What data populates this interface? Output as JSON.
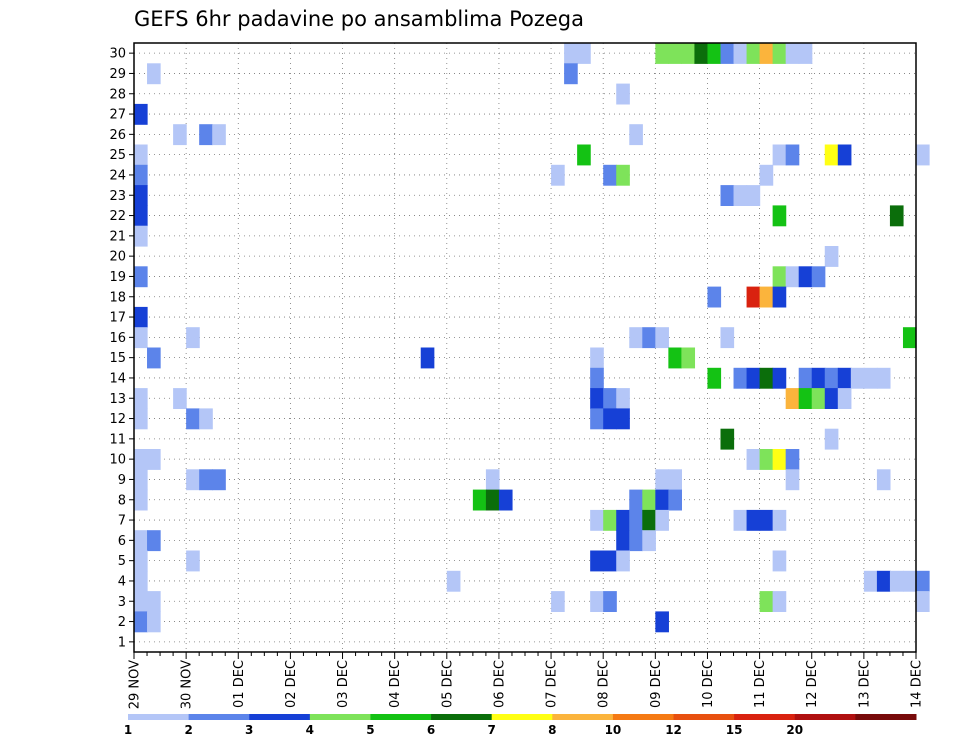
{
  "chart_data": {
    "type": "heatmap",
    "title": "GEFS 6hr padavine po ansamblima Pozega",
    "xlabel": "",
    "ylabel": "",
    "x_tick_labels": [
      "29 NOV",
      "30 NOV",
      "01 DEC",
      "02 DEC",
      "03 DEC",
      "04 DEC",
      "05 DEC",
      "06 DEC",
      "07 DEC",
      "08 DEC",
      "09 DEC",
      "10 DEC",
      "11 DEC",
      "12 DEC",
      "13 DEC",
      "14 DEC"
    ],
    "y_tick_labels": [
      "1",
      "2",
      "3",
      "4",
      "5",
      "6",
      "7",
      "8",
      "9",
      "10",
      "11",
      "12",
      "13",
      "14",
      "15",
      "16",
      "17",
      "18",
      "19",
      "20",
      "21",
      "22",
      "23",
      "24",
      "25",
      "26",
      "27",
      "28",
      "29",
      "30"
    ],
    "x_range_steps": [
      0,
      60
    ],
    "step_hours": 6,
    "grid": true,
    "legend_position": "bottom",
    "levels": [
      {
        "label": "1",
        "color": "#b4c6f7"
      },
      {
        "label": "2",
        "color": "#5c84ea"
      },
      {
        "label": "3",
        "color": "#1640d6"
      },
      {
        "label": "4",
        "color": "#7ee35a"
      },
      {
        "label": "5",
        "color": "#14c214"
      },
      {
        "label": "6",
        "color": "#0b6e0b"
      },
      {
        "label": "7",
        "color": "#ffff14"
      },
      {
        "label": "8",
        "color": "#fbb43c"
      },
      {
        "label": "10",
        "color": "#f57a14"
      },
      {
        "label": "12",
        "color": "#e8500f"
      },
      {
        "label": "15",
        "color": "#d9220f"
      },
      {
        "label": "20",
        "color": "#b01010"
      },
      {
        "label": "",
        "color": "#780b0b"
      }
    ],
    "cells_note": "each cell: [ensemble member, 6h step index from 29 NOV 00Z, color level index]",
    "cells": [
      [
        30,
        33,
        0
      ],
      [
        30,
        34,
        0
      ],
      [
        30,
        40,
        3
      ],
      [
        30,
        41,
        3
      ],
      [
        30,
        42,
        3
      ],
      [
        30,
        43,
        5
      ],
      [
        30,
        44,
        4
      ],
      [
        30,
        45,
        1
      ],
      [
        30,
        46,
        0
      ],
      [
        30,
        47,
        3
      ],
      [
        30,
        48,
        7
      ],
      [
        30,
        49,
        3
      ],
      [
        30,
        50,
        0
      ],
      [
        30,
        51,
        0
      ],
      [
        29,
        1,
        0
      ],
      [
        29,
        33,
        1
      ],
      [
        28,
        37,
        0
      ],
      [
        27,
        0,
        2
      ],
      [
        26,
        3,
        0
      ],
      [
        26,
        5,
        1
      ],
      [
        26,
        6,
        0
      ],
      [
        26,
        38,
        0
      ],
      [
        25,
        0,
        0
      ],
      [
        25,
        34,
        4
      ],
      [
        25,
        49,
        0
      ],
      [
        25,
        50,
        1
      ],
      [
        25,
        53,
        6
      ],
      [
        25,
        54,
        2
      ],
      [
        25,
        60,
        0
      ],
      [
        24,
        0,
        1
      ],
      [
        24,
        32,
        0
      ],
      [
        24,
        36,
        1
      ],
      [
        24,
        37,
        3
      ],
      [
        24,
        48,
        0
      ],
      [
        23,
        0,
        2
      ],
      [
        23,
        45,
        1
      ],
      [
        23,
        46,
        0
      ],
      [
        23,
        47,
        0
      ],
      [
        22,
        0,
        2
      ],
      [
        22,
        49,
        4
      ],
      [
        22,
        58,
        5
      ],
      [
        21,
        0,
        0
      ],
      [
        20,
        53,
        0
      ],
      [
        19,
        0,
        1
      ],
      [
        19,
        49,
        3
      ],
      [
        19,
        50,
        0
      ],
      [
        19,
        51,
        2
      ],
      [
        19,
        52,
        1
      ],
      [
        18,
        44,
        1
      ],
      [
        18,
        47,
        10
      ],
      [
        18,
        48,
        7
      ],
      [
        18,
        49,
        2
      ],
      [
        17,
        0,
        2
      ],
      [
        16,
        0,
        0
      ],
      [
        16,
        4,
        0
      ],
      [
        16,
        38,
        0
      ],
      [
        16,
        39,
        1
      ],
      [
        16,
        40,
        0
      ],
      [
        16,
        45,
        0
      ],
      [
        16,
        59,
        4
      ],
      [
        15,
        1,
        1
      ],
      [
        15,
        22,
        2
      ],
      [
        15,
        35,
        0
      ],
      [
        15,
        41,
        4
      ],
      [
        15,
        42,
        3
      ],
      [
        14,
        35,
        1
      ],
      [
        14,
        44,
        4
      ],
      [
        14,
        46,
        1
      ],
      [
        14,
        47,
        2
      ],
      [
        14,
        48,
        5
      ],
      [
        14,
        49,
        2
      ],
      [
        14,
        51,
        1
      ],
      [
        14,
        52,
        2
      ],
      [
        14,
        53,
        1
      ],
      [
        14,
        54,
        2
      ],
      [
        14,
        55,
        0
      ],
      [
        14,
        56,
        0
      ],
      [
        14,
        57,
        0
      ],
      [
        13,
        0,
        0
      ],
      [
        13,
        3,
        0
      ],
      [
        13,
        35,
        2
      ],
      [
        13,
        36,
        1
      ],
      [
        13,
        37,
        0
      ],
      [
        13,
        50,
        7
      ],
      [
        13,
        51,
        4
      ],
      [
        13,
        52,
        3
      ],
      [
        13,
        53,
        2
      ],
      [
        13,
        54,
        0
      ],
      [
        12,
        0,
        0
      ],
      [
        12,
        4,
        1
      ],
      [
        12,
        5,
        0
      ],
      [
        12,
        35,
        1
      ],
      [
        12,
        36,
        2
      ],
      [
        12,
        37,
        2
      ],
      [
        11,
        45,
        5
      ],
      [
        11,
        53,
        0
      ],
      [
        10,
        0,
        0
      ],
      [
        10,
        1,
        0
      ],
      [
        10,
        47,
        0
      ],
      [
        10,
        48,
        3
      ],
      [
        10,
        49,
        6
      ],
      [
        10,
        50,
        1
      ],
      [
        9,
        0,
        0
      ],
      [
        9,
        4,
        0
      ],
      [
        9,
        5,
        1
      ],
      [
        9,
        6,
        1
      ],
      [
        9,
        27,
        0
      ],
      [
        9,
        40,
        0
      ],
      [
        9,
        41,
        0
      ],
      [
        9,
        50,
        0
      ],
      [
        9,
        57,
        0
      ],
      [
        8,
        0,
        0
      ],
      [
        8,
        26,
        4
      ],
      [
        8,
        27,
        5
      ],
      [
        8,
        28,
        2
      ],
      [
        8,
        38,
        1
      ],
      [
        8,
        39,
        3
      ],
      [
        8,
        40,
        2
      ],
      [
        8,
        41,
        1
      ],
      [
        7,
        35,
        0
      ],
      [
        7,
        36,
        3
      ],
      [
        7,
        37,
        2
      ],
      [
        7,
        38,
        1
      ],
      [
        7,
        39,
        5
      ],
      [
        7,
        40,
        0
      ],
      [
        7,
        46,
        0
      ],
      [
        7,
        47,
        2
      ],
      [
        7,
        48,
        2
      ],
      [
        7,
        49,
        0
      ],
      [
        6,
        0,
        0
      ],
      [
        6,
        1,
        1
      ],
      [
        6,
        37,
        2
      ],
      [
        6,
        38,
        1
      ],
      [
        6,
        39,
        0
      ],
      [
        5,
        0,
        0
      ],
      [
        5,
        4,
        0
      ],
      [
        5,
        35,
        2
      ],
      [
        5,
        36,
        2
      ],
      [
        5,
        37,
        0
      ],
      [
        5,
        49,
        0
      ],
      [
        4,
        0,
        0
      ],
      [
        4,
        24,
        0
      ],
      [
        4,
        56,
        0
      ],
      [
        4,
        57,
        2
      ],
      [
        4,
        58,
        0
      ],
      [
        4,
        59,
        0
      ],
      [
        4,
        60,
        1
      ],
      [
        3,
        0,
        0
      ],
      [
        3,
        1,
        0
      ],
      [
        3,
        32,
        0
      ],
      [
        3,
        35,
        0
      ],
      [
        3,
        36,
        1
      ],
      [
        3,
        48,
        3
      ],
      [
        3,
        49,
        0
      ],
      [
        3,
        60,
        0
      ],
      [
        2,
        0,
        1
      ],
      [
        2,
        1,
        0
      ],
      [
        2,
        40,
        2
      ]
    ]
  }
}
